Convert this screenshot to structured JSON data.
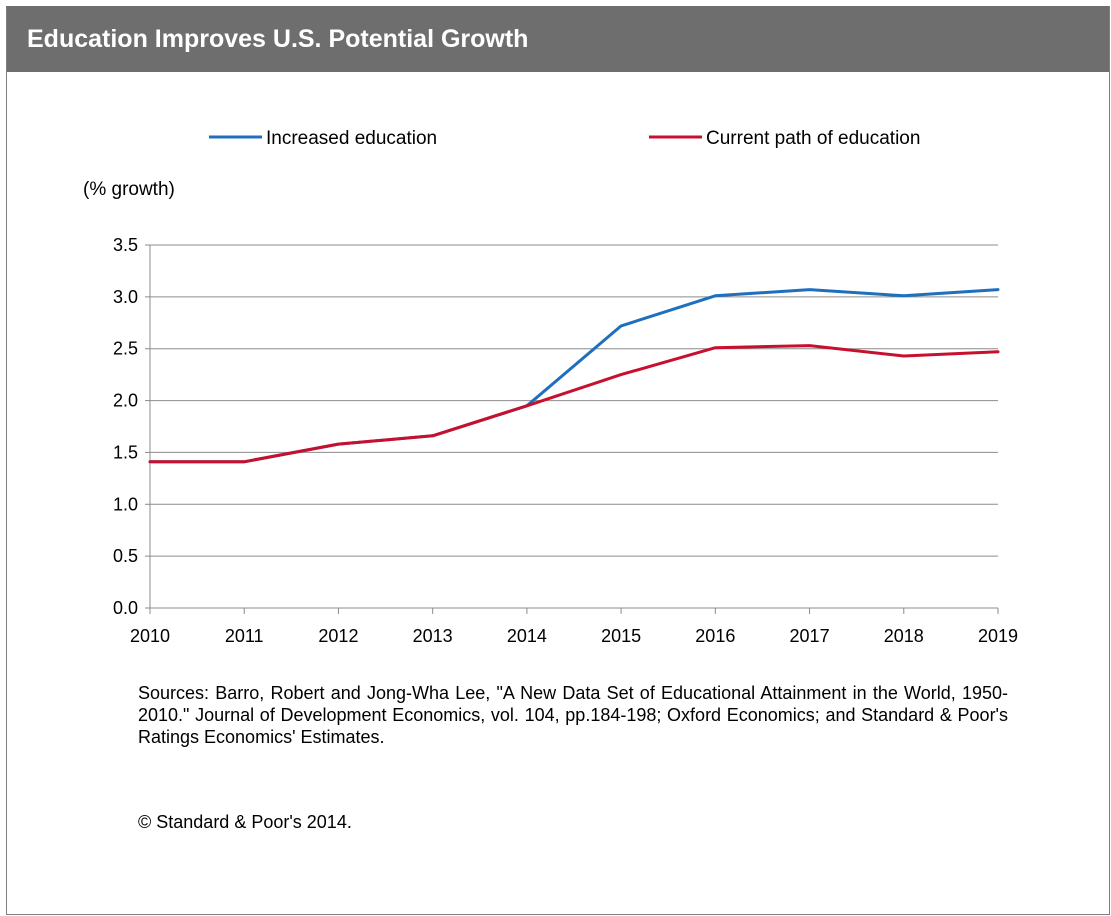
{
  "title": "Education Improves U.S. Potential Growth",
  "sources": "Sources: Barro, Robert and Jong-Wha Lee, \"A New Data Set of Educational Attainment in the World, 1950-2010.\" Journal of Development Economics, vol. 104, pp.184-198; Oxford Economics; and Standard & Poor's Ratings Economics' Estimates.",
  "copyright": "© Standard & Poor's 2014.",
  "chart_data": {
    "type": "line",
    "title": "Education Improves U.S. Potential Growth",
    "ylabel": "(% growth)",
    "xlabel": "",
    "x": [
      2010,
      2011,
      2012,
      2013,
      2014,
      2015,
      2016,
      2017,
      2018,
      2019
    ],
    "ylim": [
      0,
      3.5
    ],
    "yticks": [
      "0.0",
      "0.5",
      "1.0",
      "1.5",
      "2.0",
      "2.5",
      "3.0",
      "3.5"
    ],
    "grid": true,
    "legend_position": "top",
    "series": [
      {
        "name": "Increased education",
        "color": "#1f6fbf",
        "values": [
          1.41,
          1.41,
          1.58,
          1.66,
          1.95,
          2.72,
          3.01,
          3.07,
          3.01,
          3.07
        ]
      },
      {
        "name": "Current path of education",
        "color": "#c8102e",
        "values": [
          1.41,
          1.41,
          1.58,
          1.66,
          1.95,
          2.25,
          2.51,
          2.53,
          2.43,
          2.47
        ]
      }
    ]
  }
}
